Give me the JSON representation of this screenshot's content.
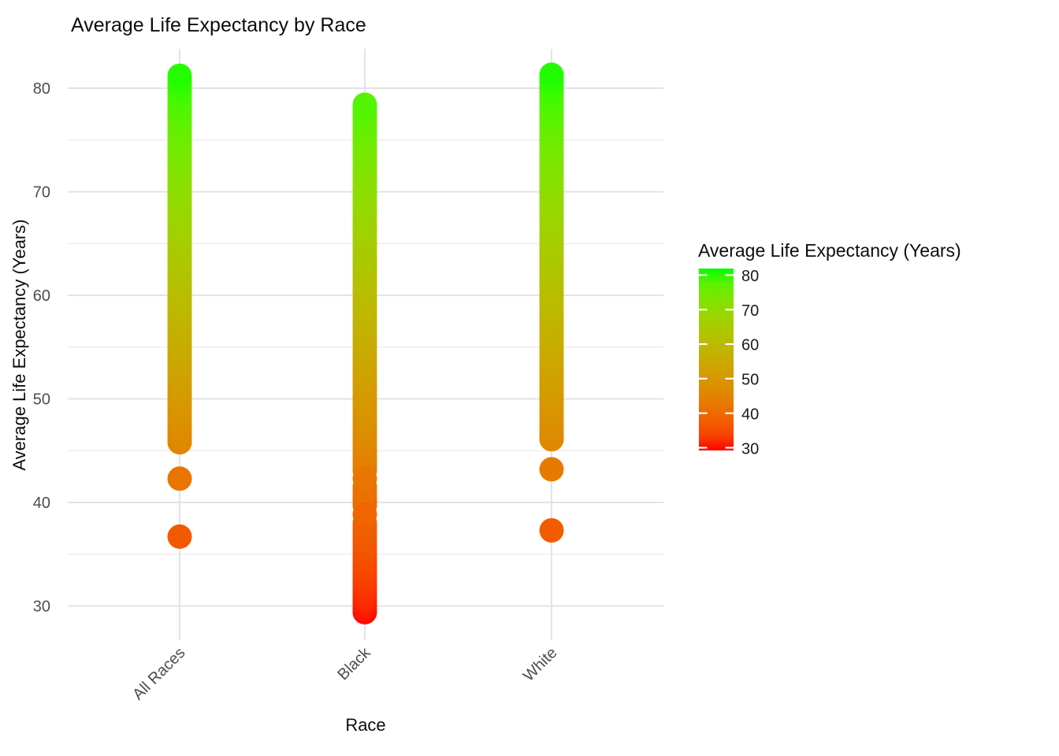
{
  "chart_data": {
    "type": "strip",
    "title": "Average Life Expectancy by Race",
    "x_title": "Race",
    "y_title": "Average Life Expectancy (Years)",
    "categories": [
      "All Races",
      "Black",
      "White"
    ],
    "y_tick_labels": [
      "80",
      "70",
      "60",
      "50",
      "40",
      "30"
    ],
    "y_tick_values": [
      80,
      70,
      60,
      50,
      40,
      30
    ],
    "ylim": [
      26.5,
      84.0
    ],
    "grid": "major-and-minor",
    "series": [
      {
        "name": "All Races",
        "strip_segments": [
          [
            45.8,
            81.2
          ]
        ],
        "single_points": [
          42.3,
          36.7
        ]
      },
      {
        "name": "Black",
        "strip_segments": [
          [
            29.4,
            38.0
          ],
          [
            39.7,
            41.5
          ],
          [
            43.1,
            78.4
          ]
        ],
        "single_points": [
          38.85,
          42.3
        ]
      },
      {
        "name": "White",
        "strip_segments": [
          [
            46.1,
            81.3
          ]
        ],
        "single_points": [
          43.2,
          37.3
        ]
      }
    ],
    "point_step_years": 0.35,
    "color_scale": {
      "low": "#FF0000",
      "high": "#00FF00",
      "domain": [
        29.2,
        81.9
      ],
      "legend_title": "Average Life Expectancy (Years)",
      "legend_position": "right",
      "legend_tick_labels": [
        "80",
        "70",
        "60",
        "50",
        "40",
        "30"
      ],
      "legend_tick_values": [
        80,
        70,
        60,
        50,
        40,
        30
      ]
    }
  }
}
